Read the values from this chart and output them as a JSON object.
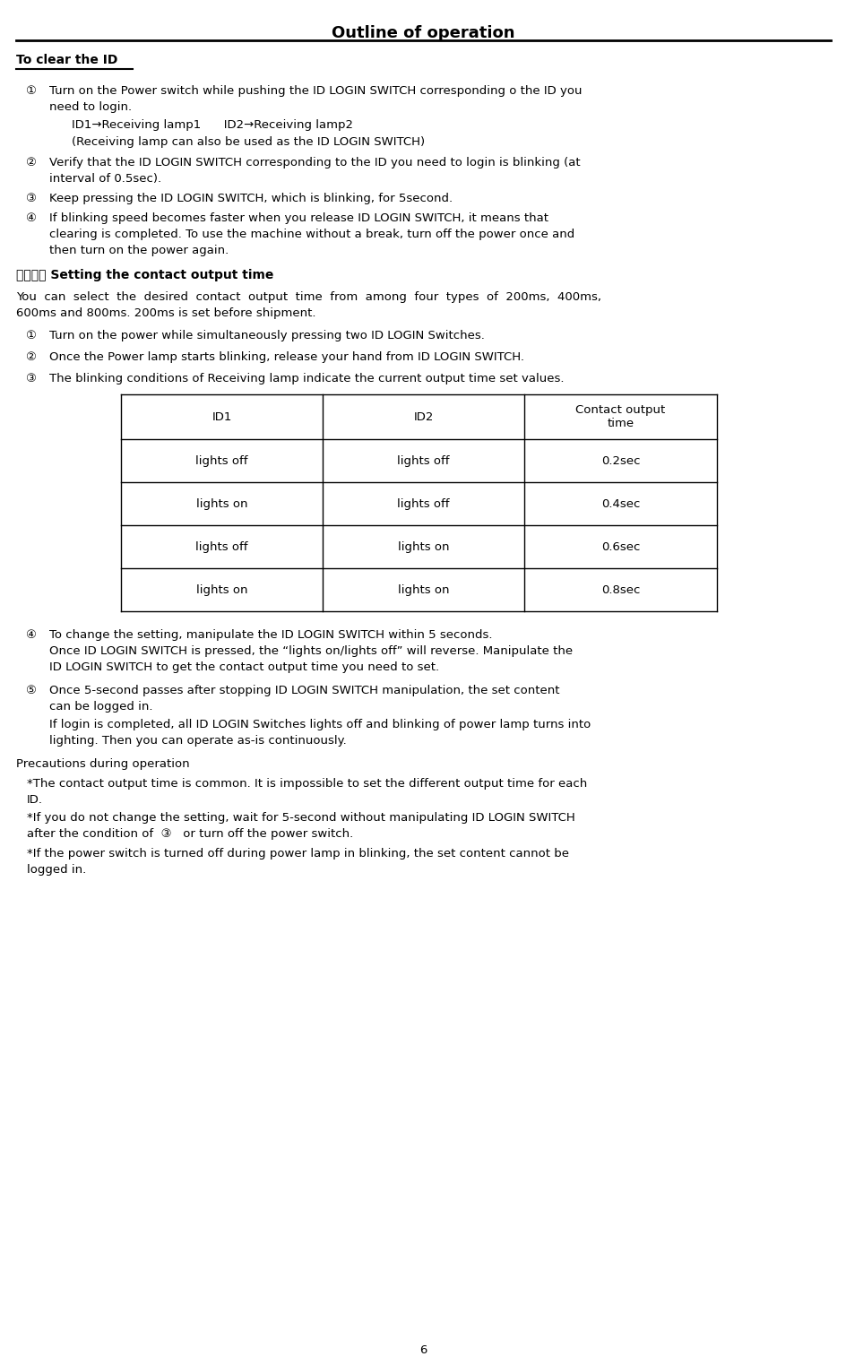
{
  "title": "Outline of operation",
  "bg_color": "#ffffff",
  "text_color": "#000000",
  "font_size_title": 13,
  "font_size_body": 9.5,
  "font_size_section": 10,
  "page_number": "6",
  "table_data": [
    [
      "ID1",
      "ID2",
      "Contact output\ntime"
    ],
    [
      "lights off",
      "lights off",
      "0.2sec"
    ],
    [
      "lights on",
      "lights off",
      "0.4sec"
    ],
    [
      "lights off",
      "lights on",
      "0.6sec"
    ],
    [
      "lights on",
      "lights on",
      "0.8sec"
    ]
  ]
}
